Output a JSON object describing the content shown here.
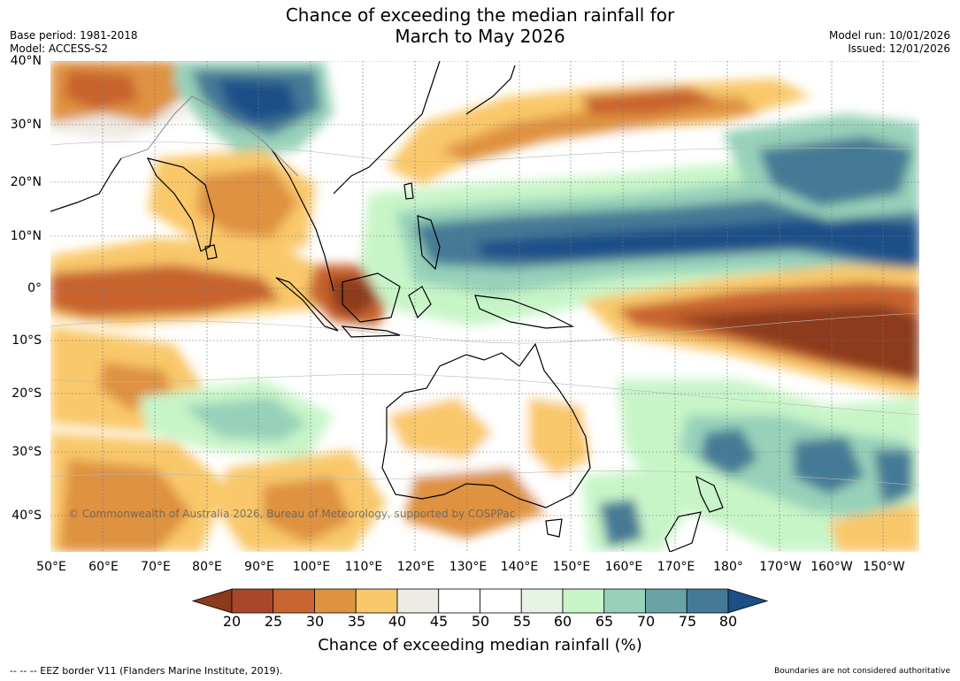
{
  "header": {
    "title_line1": "Chance of exceeding the median rainfall for",
    "title_line2": "March to May 2026",
    "base_period": "Base period: 1981-2018",
    "model": "Model: ACCESS-S2",
    "model_run": "Model run: 10/01/2026",
    "issued": "Issued: 12/01/2026"
  },
  "map": {
    "lat_labels": [
      "40°N",
      "30°N",
      "20°N",
      "10°N",
      "0°",
      "10°S",
      "20°S",
      "30°S",
      "40°S"
    ],
    "lon_labels": [
      "50°E",
      "60°E",
      "70°E",
      "80°E",
      "90°E",
      "100°E",
      "110°E",
      "120°E",
      "130°E",
      "140°E",
      "150°E",
      "160°E",
      "170°E",
      "180°",
      "170°W",
      "160°W",
      "150°W"
    ],
    "copyright": "© Commonwealth of Australia 2026, Bureau of Meteorology, supported by COSPPac"
  },
  "colorbar": {
    "ticks": [
      "20",
      "25",
      "30",
      "35",
      "40",
      "45",
      "50",
      "55",
      "60",
      "65",
      "70",
      "75",
      "80"
    ],
    "colors": [
      "#8c3a1c",
      "#a8472a",
      "#c8642f",
      "#df9240",
      "#f9c86a",
      "#eeebe4",
      "#ffffff",
      "#ffffff",
      "#e6f4e6",
      "#c8f5c8",
      "#97d1b9",
      "#6aa3a6",
      "#457a96",
      "#1c4f88"
    ],
    "title": "Chance of exceeding median rainfall (%)"
  },
  "footer": {
    "eez_note": "--  --  -- EEZ border V11 (Flanders Marine Institute, 2019).",
    "disclaimer": "Boundaries are not considered authoritative"
  }
}
